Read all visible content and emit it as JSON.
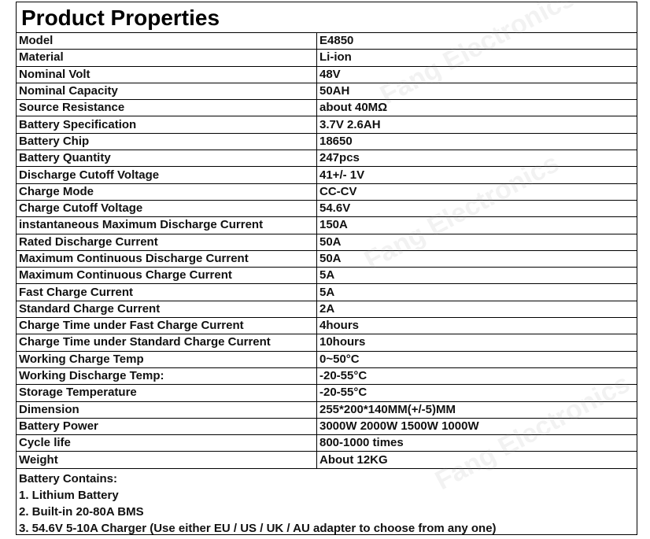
{
  "title": "Product Properties",
  "rows": [
    [
      "Model",
      "E4850"
    ],
    [
      "Material",
      "Li-ion"
    ],
    [
      "Nominal Volt",
      "48V"
    ],
    [
      "Nominal Capacity",
      "50AH"
    ],
    [
      "Source Resistance",
      "about 40MΩ"
    ],
    [
      "Battery Specification",
      "3.7V 2.6AH"
    ],
    [
      "Battery Chip",
      "18650"
    ],
    [
      "Battery Quantity",
      "247pcs"
    ],
    [
      "Discharge Cutoff Voltage",
      "41+/- 1V"
    ],
    [
      "Charge Mode",
      "CC-CV"
    ],
    [
      "Charge Cutoff Voltage",
      "54.6V"
    ],
    [
      "instantaneous Maximum Discharge Current",
      "150A"
    ],
    [
      "Rated Discharge Current",
      "50A"
    ],
    [
      "Maximum Continuous Discharge Current",
      "50A"
    ],
    [
      "Maximum Continuous Charge Current",
      "5A"
    ],
    [
      "Fast Charge Current",
      "5A"
    ],
    [
      "Standard Charge Current",
      "2A"
    ],
    [
      "Charge Time under Fast Charge Current",
      "4hours"
    ],
    [
      "Charge Time under Standard Charge Current",
      "10hours"
    ],
    [
      "Working Charge Temp",
      "0~50°C"
    ],
    [
      "Working Discharge Temp:",
      "-20-55°C"
    ],
    [
      "Storage Temperature",
      "-20-55°C"
    ],
    [
      "Dimension",
      "255*200*140MM(+/-5)MM"
    ],
    [
      "Battery Power",
      "3000W 2000W 1500W 1000W"
    ],
    [
      "Cycle life",
      "800-1000 times"
    ],
    [
      "Weight",
      "About 12KG"
    ]
  ],
  "contains": {
    "heading": "Battery Contains:",
    "items": [
      "1. Lithium Battery",
      "2. Built-in 20-80A BMS",
      "3. 54.6V 5-10A Charger (Use either EU / US / UK / AU adapter to choose from any one)"
    ]
  },
  "watermark": "Fang Electronics"
}
